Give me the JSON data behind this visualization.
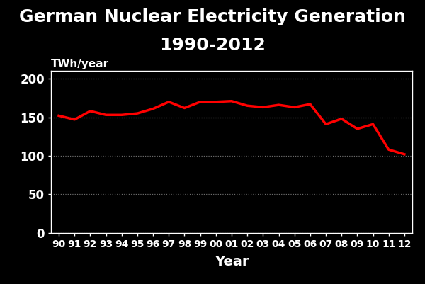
{
  "title_line1": "German Nuclear Electricity Generation",
  "title_line2": "1990-2012",
  "xlabel": "Year",
  "ylabel": "TWh/year",
  "background_color": "#000000",
  "title_color": "#ffffff",
  "label_color": "#ffffff",
  "tick_color": "#ffffff",
  "line_color": "#ff0000",
  "grid_color": "#888888",
  "years": [
    1990,
    1991,
    1992,
    1993,
    1994,
    1995,
    1996,
    1997,
    1998,
    1999,
    2000,
    2001,
    2002,
    2003,
    2004,
    2005,
    2006,
    2007,
    2008,
    2009,
    2010,
    2011,
    2012
  ],
  "values": [
    152,
    147,
    158,
    153,
    153,
    155,
    161,
    170,
    162,
    170,
    170,
    171,
    165,
    163,
    166,
    163,
    167,
    141,
    148,
    135,
    141,
    108,
    102
  ],
  "x_tick_labels": [
    "90",
    "91",
    "92",
    "93",
    "94",
    "95",
    "96",
    "97",
    "98",
    "99",
    "00",
    "01",
    "02",
    "03",
    "04",
    "05",
    "06",
    "07",
    "08",
    "09",
    "10",
    "11",
    "12"
  ],
  "ylim": [
    0,
    210
  ],
  "yticks": [
    0,
    50,
    100,
    150,
    200
  ],
  "line_width": 2.5,
  "title_fontsize": 18,
  "xlabel_fontsize": 14,
  "ylabel_annotation_fontsize": 11,
  "ytick_fontsize": 12,
  "xtick_fontsize": 10
}
